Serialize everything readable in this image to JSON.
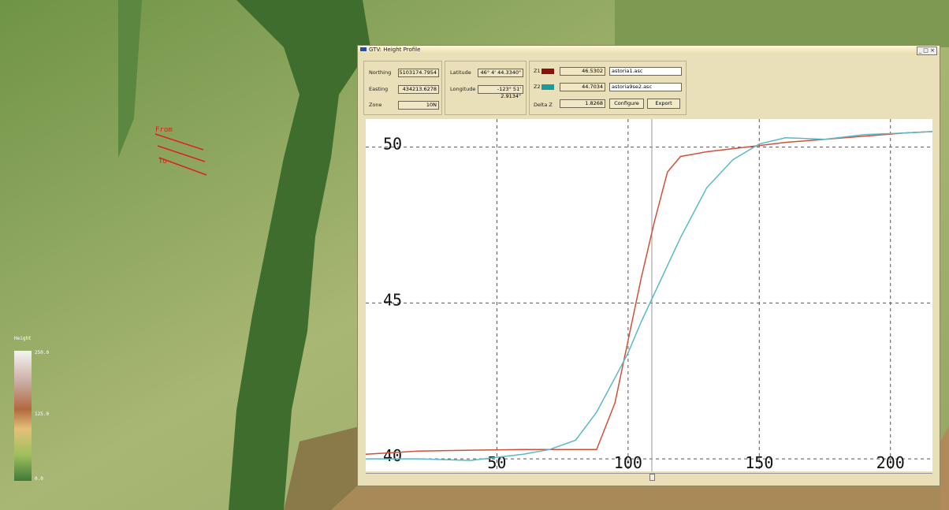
{
  "window": {
    "title": "GTV: Height Profile"
  },
  "position": {
    "northing_label": "Northing",
    "northing": "5103174.7954",
    "easting_label": "Easting",
    "easting": "434213.6278",
    "zone_label": "Zone",
    "zone": "10N"
  },
  "geo": {
    "latitude_label": "Latitude",
    "latitude": "46° 4' 44.3340\"",
    "longitude_label": "Longitude",
    "longitude": "-123° 51' 2.9134\""
  },
  "heights": {
    "z1_label": "Z1",
    "z1": "46.5302",
    "z1_file": "astoria1.asc",
    "z2_label": "Z2",
    "z2": "44.7034",
    "z2_file": "astoria9se2.asc",
    "delta_label": "Delta Z",
    "delta": "1.8268",
    "configure": "Configure",
    "export": "Export"
  },
  "legend": {
    "title": "Height",
    "labels": [
      "250.0",
      "125.0",
      "0.0"
    ]
  },
  "map": {
    "from": "From",
    "to": "To"
  },
  "chart_data": {
    "type": "line",
    "x": [
      0,
      20,
      40,
      60,
      70,
      80,
      88,
      95,
      100,
      105,
      110,
      115,
      120,
      130,
      140,
      150,
      160,
      175,
      190,
      205,
      216
    ],
    "series": [
      {
        "name": "astoria1.asc",
        "color": "#d0503c",
        "values": [
          40.15,
          40.25,
          40.28,
          40.3,
          40.3,
          40.3,
          40.3,
          41.8,
          43.8,
          45.8,
          47.6,
          49.2,
          49.7,
          49.85,
          49.95,
          50.05,
          50.15,
          50.25,
          50.35,
          50.45,
          50.5
        ]
      },
      {
        "name": "astoria9se2.asc",
        "color": "#5ab8c8",
        "values": [
          40.0,
          40.0,
          39.95,
          40.15,
          40.3,
          40.6,
          41.5,
          42.6,
          43.4,
          44.4,
          45.3,
          46.2,
          47.1,
          48.7,
          49.6,
          50.1,
          50.3,
          50.25,
          50.4,
          50.45,
          50.5
        ]
      }
    ],
    "xlim": [
      0,
      216
    ],
    "ylim": [
      39.6,
      50.9
    ],
    "xticks": [
      50,
      100,
      150,
      200
    ],
    "yticks": [
      40,
      45,
      50
    ],
    "grid": true
  }
}
